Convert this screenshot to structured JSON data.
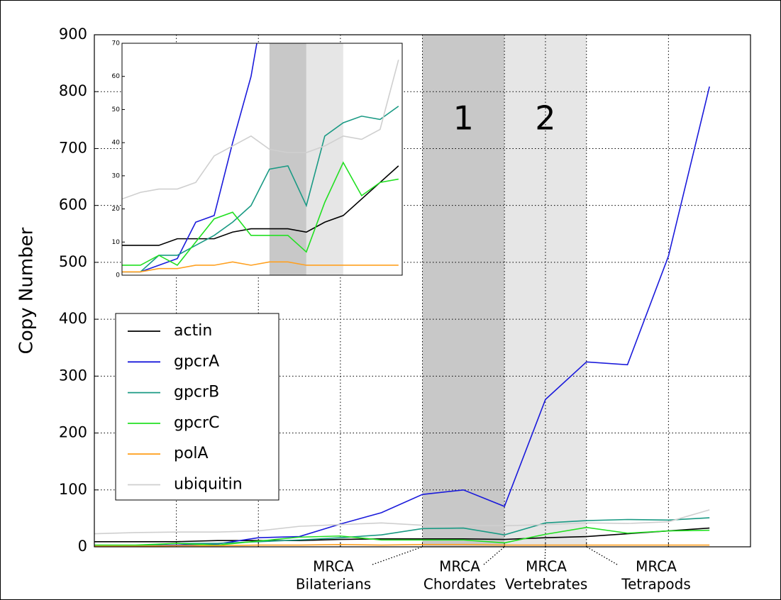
{
  "chart_data": {
    "type": "line",
    "y_label": "Copy Number",
    "x": [
      0,
      1,
      2,
      3,
      4,
      5,
      6,
      7,
      8,
      9,
      10,
      11,
      12,
      13,
      14,
      15
    ],
    "xlim": [
      0,
      16
    ],
    "xticks": [
      2,
      4,
      6,
      8,
      10,
      11,
      12,
      14
    ],
    "ylim": [
      0,
      900
    ],
    "yticks": [
      0,
      100,
      200,
      300,
      400,
      500,
      600,
      700,
      800,
      900
    ],
    "grid": true,
    "legend": "center left",
    "series": [
      {
        "name": "actin",
        "color": "#000000",
        "values": [
          9,
          9,
          9,
          11,
          11,
          11,
          13,
          14,
          14,
          14,
          13,
          16,
          18,
          23,
          28,
          33
        ]
      },
      {
        "name": "gpcrA",
        "color": "#1a1adb",
        "values": [
          1,
          1,
          3,
          5,
          16,
          18,
          40,
          60,
          92,
          100,
          71,
          259,
          325,
          320,
          511,
          809
        ]
      },
      {
        "name": "gpcrB",
        "color": "#1a9a84",
        "values": [
          1,
          1,
          6,
          6,
          9,
          12,
          16,
          21,
          32,
          33,
          21,
          42,
          46,
          48,
          47,
          51
        ]
      },
      {
        "name": "gpcrC",
        "color": "#22e022",
        "values": [
          3,
          3,
          6,
          3,
          10,
          17,
          19,
          12,
          12,
          12,
          7,
          22,
          34,
          24,
          28,
          29
        ]
      },
      {
        "name": "polA",
        "color": "#ffa020",
        "values": [
          1,
          1,
          2,
          2,
          3,
          3,
          4,
          3,
          4,
          4,
          3,
          3,
          3,
          3,
          3,
          3
        ]
      },
      {
        "name": "ubiquitin",
        "color": "#cfcfcf",
        "values": [
          23,
          25,
          26,
          26,
          28,
          36,
          39,
          42,
          38,
          37,
          37,
          39,
          42,
          41,
          44,
          65
        ]
      }
    ],
    "regions": [
      {
        "x": [
          8,
          10
        ],
        "label": "1",
        "color": "#c8c8c8"
      },
      {
        "x": [
          10,
          12
        ],
        "label": "2",
        "color": "#e6e6e6"
      }
    ],
    "annotations": [
      {
        "x": 8,
        "lines": [
          "MRCA",
          "Bilaterians"
        ]
      },
      {
        "x": 10,
        "lines": [
          "MRCA",
          "Chordates"
        ]
      },
      {
        "x": 11,
        "lines": [
          "MRCA",
          "Vertebrates"
        ]
      },
      {
        "x": 12,
        "lines": [
          "MRCA",
          "Tetrapods"
        ]
      }
    ],
    "inset": {
      "xlim": [
        0,
        15.2
      ],
      "ylim": [
        0,
        70
      ],
      "yticks": [
        0,
        10,
        20,
        30,
        40,
        50,
        60,
        70
      ]
    }
  }
}
